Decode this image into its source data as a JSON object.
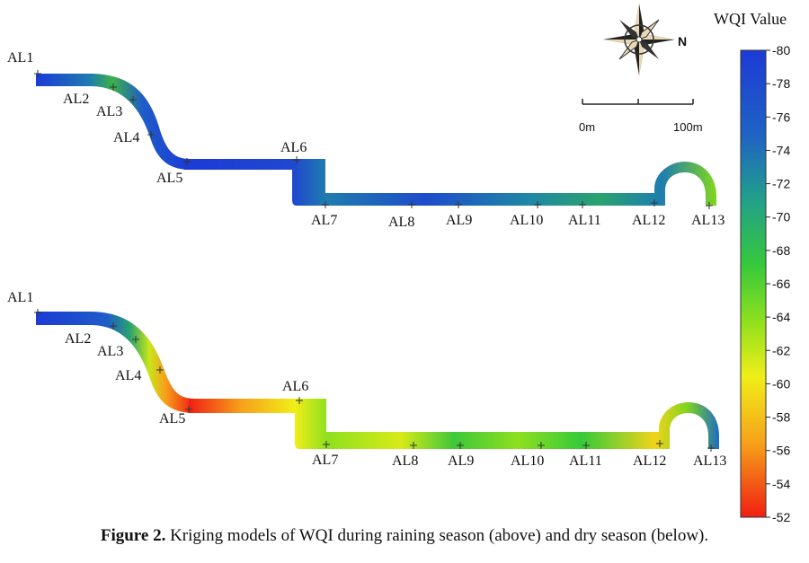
{
  "legend": {
    "title": "WQI Value",
    "ticks": [
      "80",
      "78",
      "76",
      "74",
      "72",
      "70",
      "68",
      "66",
      "64",
      "62",
      "60",
      "58",
      "56",
      "54",
      "52"
    ]
  },
  "compass": {
    "north": "N"
  },
  "scale": {
    "start": "0m",
    "end": "100m"
  },
  "rain": {
    "stations": [
      "AL1",
      "AL2",
      "AL3",
      "AL4",
      "AL5",
      "AL6",
      "AL7",
      "AL8",
      "AL9",
      "AL10",
      "AL11",
      "AL12",
      "AL13"
    ],
    "wqi": [
      79,
      74,
      76,
      78,
      79,
      78,
      74,
      77,
      77,
      74,
      72,
      74,
      68
    ]
  },
  "dry": {
    "stations": [
      "AL1",
      "AL2",
      "AL3",
      "AL4",
      "AL5",
      "AL6",
      "AL7",
      "AL8",
      "AL9",
      "AL10",
      "AL11",
      "AL12",
      "AL13"
    ],
    "wqi": [
      79,
      78,
      76,
      64,
      53,
      62,
      66,
      63,
      68,
      67,
      68,
      61,
      76
    ]
  },
  "caption": {
    "label": "Figure 2.",
    "text": " Kriging models of WQI during raining season (above) and dry season (below)."
  }
}
